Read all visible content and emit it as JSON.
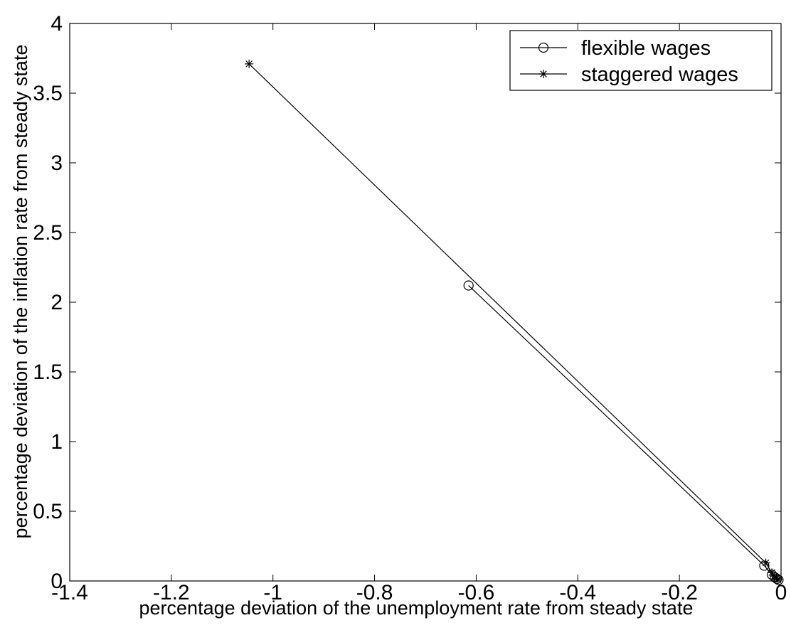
{
  "chart_data": {
    "type": "line",
    "xlabel": "percentage deviation of the unemployment rate from steady state",
    "ylabel": "percentage deviation of the inflation rate from steady state",
    "xlim": [
      -1.4,
      0
    ],
    "ylim": [
      0,
      4
    ],
    "x_ticks": [
      -1.4,
      -1.2,
      -1,
      -0.8,
      -0.6,
      -0.4,
      -0.2,
      0
    ],
    "x_tick_labels": [
      "-1.4",
      "-1.2",
      "-1",
      "-0.8",
      "-0.6",
      "-0.4",
      "-0.2",
      "0"
    ],
    "y_ticks": [
      0,
      0.5,
      1,
      1.5,
      2,
      2.5,
      3,
      3.5,
      4
    ],
    "y_tick_labels": [
      "0",
      "0.5",
      "1",
      "1.5",
      "2",
      "2.5",
      "3",
      "3.5",
      "4"
    ],
    "grid": false,
    "legend_position": "top-right",
    "series": [
      {
        "name": "flexible wages",
        "marker": "circle",
        "color": "#000000",
        "points": [
          [
            -0.615,
            2.12
          ],
          [
            -0.033,
            0.11
          ],
          [
            -0.018,
            0.045
          ],
          [
            -0.012,
            0.025
          ],
          [
            -0.008,
            0.015
          ],
          [
            -0.005,
            0.008
          ]
        ]
      },
      {
        "name": "staggered wages",
        "marker": "star",
        "color": "#000000",
        "points": [
          [
            -1.047,
            3.71
          ],
          [
            -0.03,
            0.13
          ],
          [
            -0.018,
            0.06
          ],
          [
            -0.013,
            0.035
          ],
          [
            -0.009,
            0.02
          ],
          [
            -0.006,
            0.01
          ]
        ]
      }
    ]
  }
}
